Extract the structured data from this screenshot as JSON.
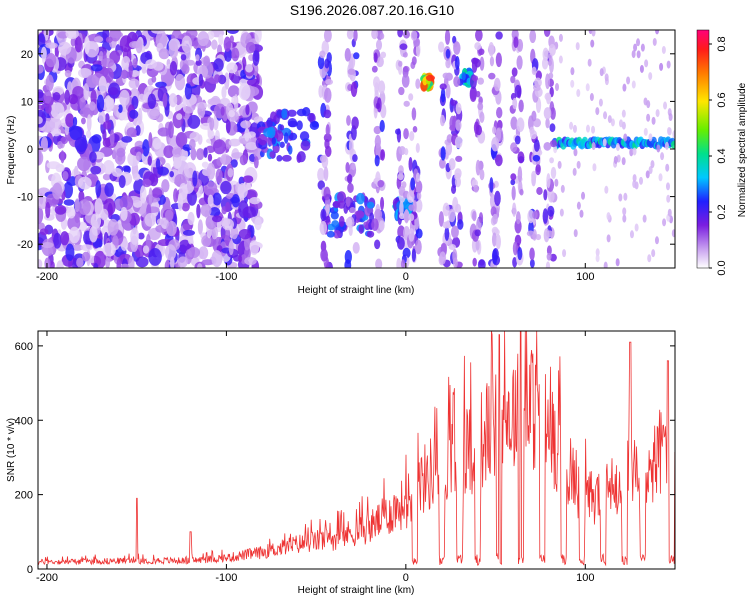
{
  "title": "S196.2026.087.20.16.G10",
  "chart_data": [
    {
      "type": "heatmap",
      "id": "spectrogram",
      "xlabel": "Height of straight line (km)",
      "ylabel": "Frequency (Hz)",
      "xlim": [
        -205,
        150
      ],
      "ylim": [
        -25,
        25
      ],
      "xticks": [
        -200,
        -100,
        0,
        100
      ],
      "yticks": [
        -20,
        -10,
        0,
        10,
        20
      ],
      "colorbar": {
        "label": "Normalized spectral amplitude",
        "range": [
          0.0,
          0.85
        ],
        "ticks": [
          0.0,
          0.2,
          0.4,
          0.6,
          0.8
        ],
        "tick_labels": [
          "0.0",
          "0.2",
          "0.4",
          "0.6",
          "0.8"
        ]
      },
      "features": [
        {
          "x": [
            -205,
            -82
          ],
          "freq": [
            -25,
            25
          ],
          "amplitude": 0.1,
          "kind": "noise"
        },
        {
          "x": [
            -82,
            -50
          ],
          "freq": [
            -2,
            8
          ],
          "amplitude": 0.25,
          "kind": "cluster"
        },
        {
          "x": [
            -45,
            -18
          ],
          "freq": [
            -18,
            -10
          ],
          "amplitude": 0.25,
          "kind": "cluster"
        },
        {
          "x": [
            -5,
            2
          ],
          "freq": [
            -14,
            -11
          ],
          "amplitude": 0.3,
          "kind": "cluster"
        },
        {
          "x": [
            10,
            14
          ],
          "freq": [
            13,
            15
          ],
          "amplitude": 0.65,
          "kind": "cluster"
        },
        {
          "x": [
            32,
            36
          ],
          "freq": [
            14,
            16
          ],
          "amplitude": 0.35,
          "kind": "cluster"
        },
        {
          "x": [
            83,
            150
          ],
          "freq": [
            0,
            2.5
          ],
          "amplitude": 0.35,
          "kind": "band"
        }
      ]
    },
    {
      "type": "line",
      "id": "snr",
      "xlabel": "Height of straight line (km)",
      "ylabel": "SNR (10 * v/v)",
      "xlim": [
        -205,
        150
      ],
      "ylim": [
        0,
        640
      ],
      "xticks": [
        -200,
        -100,
        0,
        100
      ],
      "yticks": [
        0,
        200,
        400,
        600
      ],
      "color": "#ee3333",
      "envelope": {
        "x": [
          -205,
          -150,
          -120,
          -100,
          -80,
          -60,
          -40,
          -20,
          0,
          10,
          20,
          40,
          50,
          60,
          70,
          80,
          90,
          100,
          110,
          120,
          125,
          130,
          140,
          150
        ],
        "y": [
          25,
          30,
          30,
          40,
          60,
          90,
          110,
          150,
          240,
          320,
          380,
          450,
          520,
          560,
          580,
          500,
          380,
          250,
          270,
          320,
          420,
          300,
          400,
          520
        ]
      },
      "dropouts": [
        5,
        20,
        30,
        40,
        52,
        64,
        76,
        88,
        98,
        110,
        122,
        132,
        148
      ],
      "spikes": [
        {
          "x": -150,
          "y": 190
        },
        {
          "x": -120,
          "y": 100
        },
        {
          "x": 52,
          "y": 630
        },
        {
          "x": 64,
          "y": 640
        },
        {
          "x": 125,
          "y": 610
        },
        {
          "x": 146,
          "y": 560
        }
      ]
    }
  ]
}
